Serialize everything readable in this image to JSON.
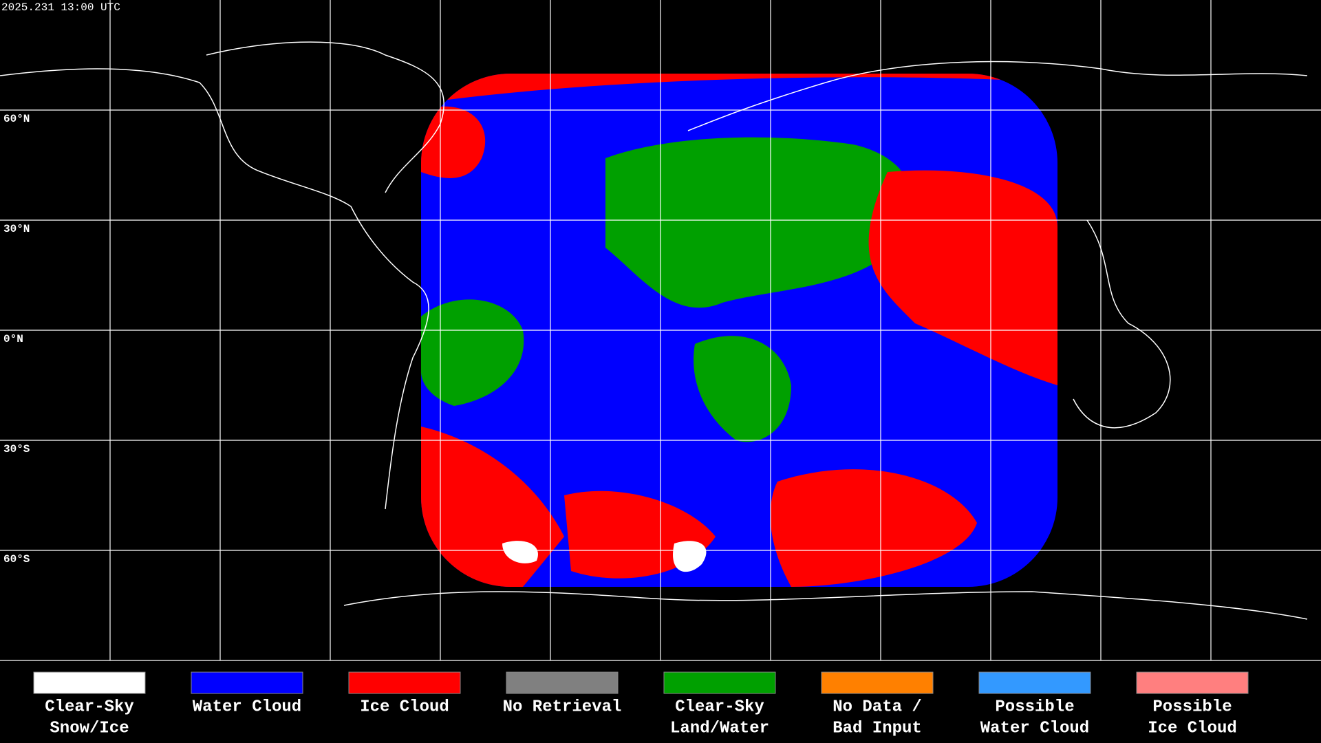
{
  "header": {
    "timestamp": "2025.231 13:00 UTC"
  },
  "latitude_labels": [
    "60°N",
    "30°N",
    "0°N",
    "30°S",
    "60°S"
  ],
  "legend": [
    {
      "label_lines": [
        "Clear-Sky",
        "Snow/Ice"
      ],
      "color": "#ffffff"
    },
    {
      "label_lines": [
        "Water Cloud"
      ],
      "color": "#0000ff"
    },
    {
      "label_lines": [
        "Ice Cloud"
      ],
      "color": "#ff0000"
    },
    {
      "label_lines": [
        "No Retrieval"
      ],
      "color": "#808080"
    },
    {
      "label_lines": [
        "Clear-Sky",
        "Land/Water"
      ],
      "color": "#00a000"
    },
    {
      "label_lines": [
        "No Data /",
        "Bad Input"
      ],
      "color": "#ff8000"
    },
    {
      "label_lines": [
        "Possible",
        "Water Cloud"
      ],
      "color": "#3399ff"
    },
    {
      "label_lines": [
        "Possible",
        "Ice Cloud"
      ],
      "color": "#ff7f7f"
    }
  ]
}
